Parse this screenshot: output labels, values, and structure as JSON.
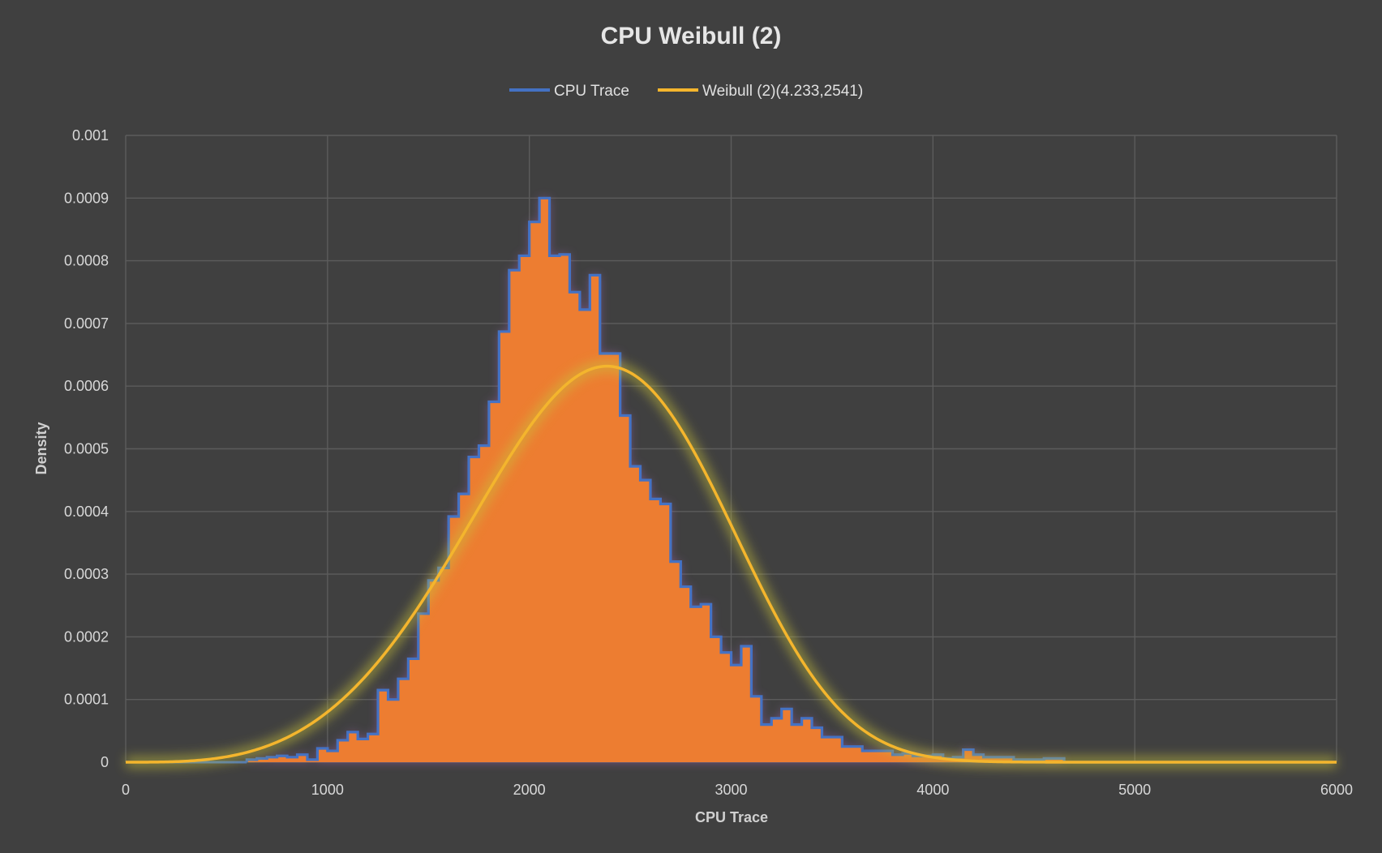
{
  "chart_data": {
    "type": "histogram-line",
    "title": "CPU Weibull (2)",
    "xlabel": "CPU Trace",
    "ylabel": "Density",
    "xlim": [
      0,
      6000
    ],
    "ylim": [
      0,
      0.001
    ],
    "grid": true,
    "legend_position": "top",
    "x_ticks": [
      "0",
      "1000",
      "2000",
      "3000",
      "4000",
      "5000",
      "6000"
    ],
    "y_ticks": [
      "0",
      "0.0001",
      "0.0002",
      "0.0003",
      "0.0004",
      "0.0005",
      "0.0006",
      "0.0007",
      "0.0008",
      "0.0009",
      "0.001"
    ],
    "histogram": {
      "name": "CPU Trace",
      "color": "#4472c4",
      "fill_color": "#ed7d31",
      "bin_width": 50,
      "bin_start": 600,
      "densities": [
        4e-06,
        6e-06,
        8e-06,
        1e-05,
        8e-06,
        1.2e-05,
        4e-06,
        2.2e-05,
        1.8e-05,
        3.5e-05,
        4.8e-05,
        3.7e-05,
        4.5e-05,
        0.000115,
        0.0001,
        0.000133,
        0.000165,
        0.000237,
        0.00029,
        0.00031,
        0.000392,
        0.000428,
        0.000487,
        0.000505,
        0.000575,
        0.000687,
        0.000785,
        0.000808,
        0.000862,
        0.0009,
        0.000808,
        0.00081,
        0.00075,
        0.000722,
        0.000777,
        0.000652,
        0.000652,
        0.000553,
        0.000472,
        0.00045,
        0.00042,
        0.000412,
        0.00032,
        0.00028,
        0.000248,
        0.000252,
        0.0002,
        0.000175,
        0.000155,
        0.000185,
        0.000105,
        6e-05,
        7e-05,
        8.5e-05,
        6e-05,
        7e-05,
        5.5e-05,
        4e-05,
        4e-05,
        2.5e-05,
        2.5e-05,
        1.8e-05,
        1.8e-05,
        1.8e-05,
        1.2e-05,
        1.4e-05,
        1e-05,
        1e-05,
        1.2e-05,
        6e-06,
        8e-06,
        2e-05,
        1.2e-05,
        8e-06,
        8e-06,
        8e-06,
        4e-06,
        4e-06,
        4e-06,
        6e-06,
        6e-06
      ]
    },
    "series": [
      {
        "name": "Weibull (2)(4.233,2541)",
        "color": "#f4b52d",
        "shape": 4.233,
        "scale": 2541
      }
    ]
  }
}
